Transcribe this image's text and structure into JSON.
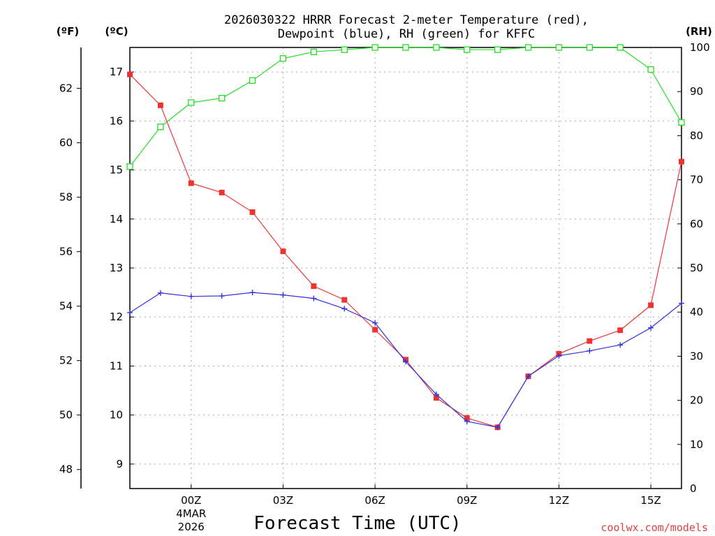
{
  "chart_data": {
    "type": "line",
    "title_lines": [
      "2026030322 HRRR Forecast 2-meter Temperature (red),",
      "Dewpoint (blue), RH (green) for KFFC"
    ],
    "xlabel": "Forecast Time (UTC)",
    "credit": "coolwx.com/models",
    "units": {
      "fahrenheit": "(ºF)",
      "celsius": "(ºC)",
      "rh": "(RH)"
    },
    "x_hours": [
      0,
      1,
      2,
      3,
      4,
      5,
      6,
      7,
      8,
      9,
      10,
      11,
      12,
      13,
      14,
      15,
      16,
      17,
      18
    ],
    "x_ticks": [
      {
        "hour": 2,
        "label": "00Z",
        "date_line1": "4MAR",
        "date_line2": "2026"
      },
      {
        "hour": 5,
        "label": "03Z"
      },
      {
        "hour": 8,
        "label": "06Z"
      },
      {
        "hour": 11,
        "label": "09Z"
      },
      {
        "hour": 14,
        "label": "12Z"
      },
      {
        "hour": 17,
        "label": "15Z"
      }
    ],
    "y_celsius": {
      "range": [
        8.5,
        17.5
      ],
      "ticks": [
        9,
        10,
        11,
        12,
        13,
        14,
        15,
        16,
        17
      ]
    },
    "y_fahrenheit": {
      "range": [
        47.3,
        63.5
      ],
      "ticks": [
        48,
        50,
        52,
        54,
        56,
        58,
        60,
        62
      ]
    },
    "y_rh": {
      "range": [
        0,
        100
      ],
      "ticks": [
        0,
        10,
        20,
        30,
        40,
        50,
        60,
        70,
        80,
        90,
        100
      ]
    },
    "grid": true,
    "series": [
      {
        "name": "Temperature",
        "axis": "celsius",
        "color": "#ee3333",
        "marker": "filled-square",
        "values": [
          16.95,
          16.32,
          14.73,
          14.54,
          14.14,
          13.34,
          12.63,
          12.35,
          11.74,
          11.13,
          10.35,
          9.94,
          9.75,
          10.79,
          11.25,
          11.51,
          11.73,
          12.24,
          15.17
        ]
      },
      {
        "name": "Dewpoint",
        "axis": "celsius",
        "color": "#3333dd",
        "marker": "plus",
        "values": [
          12.09,
          12.49,
          12.42,
          12.43,
          12.5,
          12.45,
          12.38,
          12.17,
          11.88,
          11.09,
          10.42,
          9.87,
          9.75,
          10.79,
          11.21,
          11.31,
          11.43,
          11.78,
          12.28
        ]
      },
      {
        "name": "RH",
        "axis": "rh",
        "color": "#22dd22",
        "marker": "open-square",
        "values": [
          73,
          82,
          87.5,
          88.5,
          92.5,
          97.5,
          99,
          99.5,
          100,
          100,
          100,
          99.5,
          99.5,
          100,
          100,
          100,
          100,
          95,
          83
        ]
      }
    ]
  }
}
